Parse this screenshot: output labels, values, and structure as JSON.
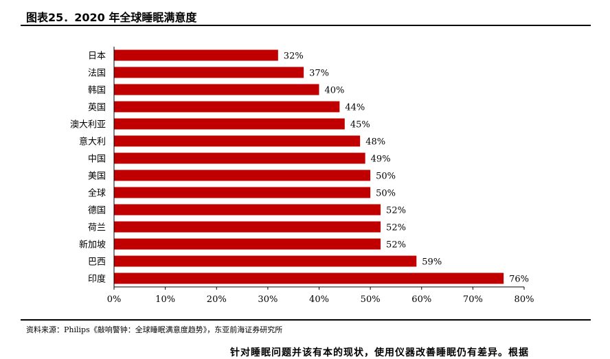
{
  "page": {
    "figure_title": "图表25．2020 年全球睡眠满意度",
    "source_note": "资料来源：Philips《敲响警钟：全球睡眠满意度趋势》，东亚前海证券研究所",
    "cutoff_text": "针对睡眠问题并该有本的现状，使用仪器改善睡眠仍有差异。根据"
  },
  "colors": {
    "bar": "#C00000",
    "axis": "#000000"
  },
  "chart_data": {
    "type": "bar",
    "orientation": "horizontal",
    "title": "",
    "xlabel": "",
    "ylabel": "",
    "categories": [
      "日本",
      "法国",
      "韩国",
      "英国",
      "澳大利亚",
      "意大利",
      "中国",
      "美国",
      "全球",
      "德国",
      "荷兰",
      "新加坡",
      "巴西",
      "印度"
    ],
    "values": [
      32,
      37,
      40,
      44,
      45,
      48,
      49,
      50,
      50,
      52,
      52,
      52,
      59,
      76
    ],
    "value_labels": [
      "32%",
      "37%",
      "40%",
      "44%",
      "45%",
      "48%",
      "49%",
      "50%",
      "50%",
      "52%",
      "52%",
      "52%",
      "59%",
      "76%"
    ],
    "xlim": [
      0,
      80
    ],
    "x_ticks": [
      0,
      10,
      20,
      30,
      40,
      50,
      60,
      70,
      80
    ],
    "x_tick_labels": [
      "0%",
      "10%",
      "20%",
      "30%",
      "40%",
      "50%",
      "60%",
      "70%",
      "80%"
    ],
    "grid": false,
    "legend": "none"
  }
}
